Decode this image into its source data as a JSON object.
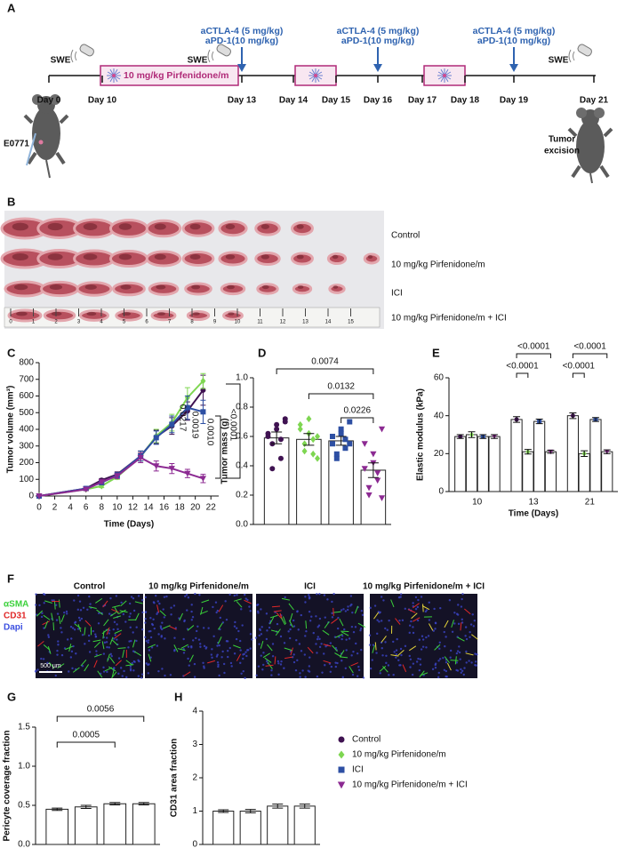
{
  "panel_labels": [
    "A",
    "B",
    "C",
    "D",
    "E",
    "F",
    "G",
    "H"
  ],
  "timeline": {
    "days": [
      "Day 0",
      "Day 10",
      "Day 13",
      "Day 14",
      "Day 15",
      "Day 16",
      "Day 17",
      "Day 18",
      "Day 19",
      "Day 21"
    ],
    "swe": [
      "SWE",
      "SWE",
      "SWE"
    ],
    "doses": [
      [
        "aCTLA-4 (5 mg/kg)",
        "aPD-1(10 mg/kg)"
      ],
      [
        "aCTLA-4 (5 mg/kg)",
        "aPD-1(10 mg/kg)"
      ],
      [
        "aCTLA-4 (5 mg/kg)",
        "aPD-1(10 mg/kg)"
      ]
    ],
    "drug": "10 mg/kg Pirfenidone/m",
    "cell_line": "E0771",
    "excision": [
      "Tumor",
      "excision"
    ]
  },
  "photo_tumors": {
    "groups": [
      "Control",
      "10 mg/kg Pirfenidone/m",
      "ICI",
      "10 mg/kg Pirfenidone/m + ICI"
    ],
    "ruler": [
      0,
      1,
      2,
      3,
      4,
      5,
      6,
      7,
      8,
      9,
      10,
      11,
      12,
      13,
      14,
      15
    ]
  },
  "photo_staining": {
    "groups": [
      "Control",
      "10 mg/kg Pirfenidone/m",
      "ICI",
      "10 mg/kg Pirfenidone/m + ICI"
    ],
    "stains": [
      "αSMA",
      "CD31",
      "Dapi"
    ],
    "scale_bar": "500 µm"
  },
  "legend": {
    "names": [
      "Control",
      "10 mg/kg Pirfenidone/m",
      "ICI",
      "10 mg/kg Pirfenidone/m + ICI"
    ],
    "colors": [
      "#3f1251",
      "#7ed651",
      "#2d4fa3",
      "#8c2a92"
    ],
    "markers": [
      "circle",
      "diamond",
      "square",
      "triangle-down"
    ]
  },
  "chart_data": [
    {
      "type": "line",
      "xlabel": "Time (Days)",
      "ylabel": "Tumor volume (mm³)",
      "x": [
        0,
        6,
        8,
        10,
        13,
        15,
        17,
        19,
        21
      ],
      "series": [
        {
          "values": [
            0,
            45,
            95,
            130,
            240,
            355,
            420,
            510,
            635
          ],
          "errors": [
            0,
            8,
            10,
            15,
            30,
            40,
            50,
            55,
            90
          ]
        },
        {
          "values": [
            0,
            40,
            60,
            115,
            235,
            360,
            440,
            590,
            690
          ],
          "errors": [
            0,
            8,
            10,
            15,
            25,
            40,
            50,
            60,
            45
          ]
        },
        {
          "values": [
            0,
            45,
            80,
            125,
            240,
            350,
            430,
            530,
            505
          ],
          "errors": [
            0,
            8,
            10,
            15,
            30,
            40,
            50,
            70,
            70
          ]
        },
        {
          "values": [
            0,
            40,
            85,
            120,
            230,
            180,
            165,
            135,
            105
          ],
          "errors": [
            0,
            8,
            10,
            15,
            30,
            30,
            30,
            25,
            25
          ]
        }
      ],
      "xlim": [
        0,
        23
      ],
      "xticks": [
        0,
        2,
        4,
        6,
        8,
        10,
        12,
        14,
        16,
        18,
        20,
        22
      ],
      "ylim": [
        0,
        800
      ],
      "yticks": [
        0,
        100,
        200,
        300,
        400,
        500,
        600,
        700,
        800
      ],
      "annotations": [
        "0.0217",
        "0.0019",
        "0.0010",
        "<0.0001"
      ]
    },
    {
      "type": "bar",
      "ylabel": "Tumor mass (g)",
      "values": [
        0.59,
        0.58,
        0.57,
        0.37
      ],
      "errors": [
        0.04,
        0.04,
        0.03,
        0.05
      ],
      "points": [
        [
          0.62,
          0.55,
          0.68,
          0.45,
          0.72,
          0.6,
          0.38,
          0.65,
          0.58,
          0.7
        ],
        [
          0.65,
          0.5,
          0.72,
          0.58,
          0.45,
          0.68,
          0.55,
          0.62,
          0.48,
          0.6
        ],
        [
          0.6,
          0.45,
          0.65,
          0.52,
          0.7,
          0.55,
          0.48,
          0.62,
          0.58,
          0.55
        ],
        [
          0.55,
          0.2,
          0.48,
          0.3,
          0.65,
          0.38,
          0.25,
          0.42,
          0.35,
          0.18
        ]
      ],
      "ylim": [
        0,
        1
      ],
      "yticks": [
        {
          "value": 0,
          "label": "0.0"
        },
        0.2,
        0.4,
        0.6,
        0.8,
        {
          "value": 1,
          "label": "1.0"
        }
      ],
      "comparisons": [
        "0.0074",
        "0.0132",
        "0.0226"
      ]
    },
    {
      "type": "grouped_bar",
      "xlabel": "Time (Days)",
      "ylabel": "Elastic modulus (kPa)",
      "categories": [
        "10",
        "13",
        "21"
      ],
      "series": [
        {
          "values": [
            29,
            38,
            40
          ],
          "errors": [
            1,
            1.5,
            1.5
          ]
        },
        {
          "values": [
            30,
            21,
            20
          ],
          "errors": [
            1.5,
            1.2,
            1.5
          ]
        },
        {
          "values": [
            29,
            37,
            38
          ],
          "errors": [
            1,
            1.2,
            1
          ]
        },
        {
          "values": [
            29,
            21,
            21
          ],
          "errors": [
            1,
            0.8,
            1
          ]
        }
      ],
      "ylim": [
        0,
        60
      ],
      "yticks": [
        0,
        20,
        40,
        60
      ],
      "comparisons": [
        "<0.0001",
        "<0.0001",
        "<0.0001",
        "<0.0001"
      ]
    },
    {
      "type": "bar",
      "ylabel": "Pericyte coverage fraction",
      "values": [
        0.45,
        0.48,
        0.52,
        0.52
      ],
      "errors": [
        0.015,
        0.02,
        0.015,
        0.015
      ],
      "ylim": [
        0,
        1.5
      ],
      "yticks": [
        {
          "value": 0,
          "label": "0.0"
        },
        0.5,
        {
          "value": 1,
          "label": "1.0"
        },
        1.5
      ],
      "comparisons": [
        "0.0056",
        "0.0005"
      ]
    },
    {
      "type": "bar",
      "ylabel": "CD31 area fraction",
      "values": [
        1.0,
        1.0,
        1.15,
        1.15
      ],
      "errors": [
        0.04,
        0.05,
        0.06,
        0.06
      ],
      "ylim": [
        0,
        4
      ],
      "yticks": [
        0,
        1,
        2,
        3,
        4
      ]
    }
  ]
}
